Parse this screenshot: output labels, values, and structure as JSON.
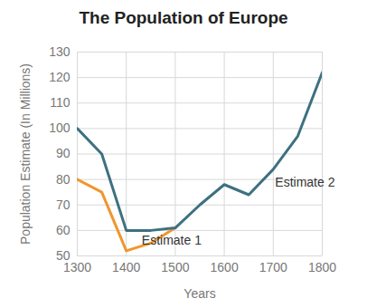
{
  "chart_data": {
    "type": "line",
    "title": "The Population of Europe",
    "x_label": "Years",
    "y_label": "Population Estimate (In Millions)",
    "x": [
      1300,
      1350,
      1400,
      1450,
      1500,
      1550,
      1600,
      1650,
      1700,
      1750,
      1800
    ],
    "series": [
      {
        "name": "Estimate 1",
        "color": "#f0962e",
        "values": [
          80,
          75,
          52,
          55,
          61,
          null,
          null,
          null,
          null,
          null,
          null
        ]
      },
      {
        "name": "Estimate 2",
        "color": "#3d7180",
        "values": [
          100,
          90,
          60,
          60,
          61,
          70,
          78,
          74,
          84,
          97,
          122
        ]
      }
    ],
    "xlim": [
      1300,
      1800
    ],
    "xticks": [
      1300,
      1400,
      1500,
      1600,
      1700,
      1800
    ],
    "ylim": [
      50,
      130
    ],
    "yticks": [
      50,
      60,
      70,
      80,
      90,
      100,
      110,
      120,
      130
    ],
    "grid": true
  }
}
